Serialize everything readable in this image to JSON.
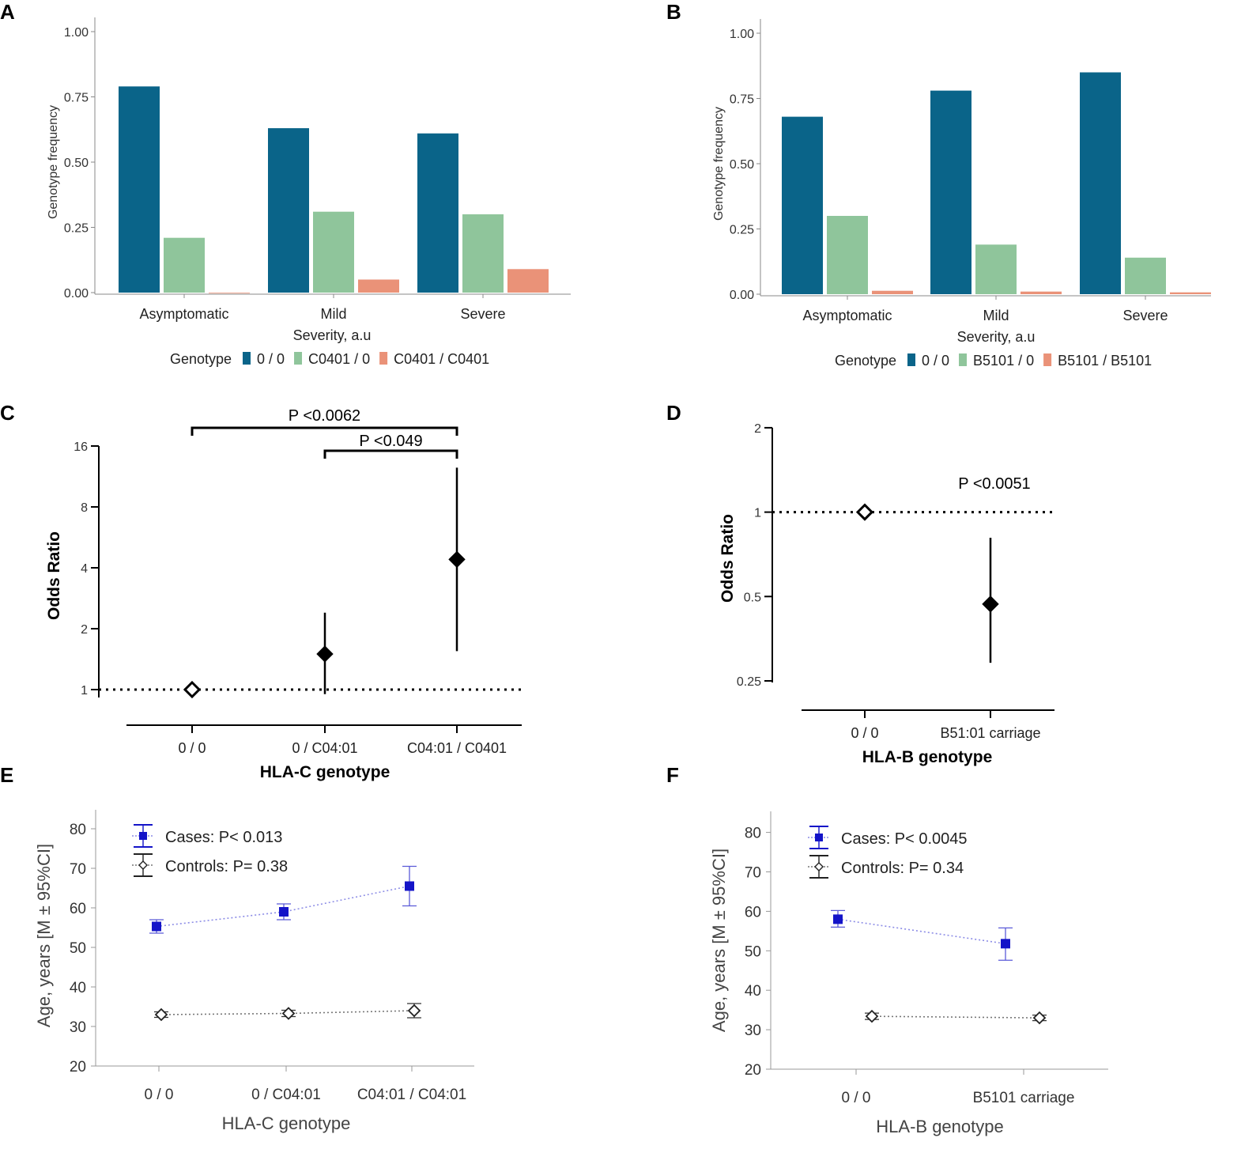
{
  "colors": {
    "g00": "#0a6489",
    "het": "#8fc59b",
    "hom": "#ea9278",
    "cases": "#1414c8",
    "cases_line": "#8c8ce6",
    "controls": "#222222"
  },
  "panel_labels": [
    "A",
    "B",
    "C",
    "D",
    "E",
    "F"
  ],
  "chart_data": [
    {
      "id": "A",
      "type": "bar",
      "categories": [
        "Asymptomatic",
        "Mild",
        "Severe"
      ],
      "series": [
        {
          "name": "0 / 0",
          "color_key": "g00",
          "values": [
            0.79,
            0.63,
            0.61
          ]
        },
        {
          "name": "C0401 / 0",
          "color_key": "het",
          "values": [
            0.21,
            0.31,
            0.3
          ]
        },
        {
          "name": "C0401 / C0401",
          "color_key": "hom",
          "values": [
            0.0,
            0.05,
            0.09
          ]
        }
      ],
      "yticks": [
        0.0,
        0.25,
        0.5,
        0.75,
        1.0
      ],
      "ytick_labels": [
        "0.00",
        "0.25",
        "0.50",
        "0.75",
        "1.00"
      ],
      "ylim": [
        0,
        1.0
      ],
      "xlabel": "Severity, a.u",
      "ylabel": "Genotype frequency",
      "legend_title": "Genotype",
      "legend_position": "bottom"
    },
    {
      "id": "B",
      "type": "bar",
      "categories": [
        "Asymptomatic",
        "Mild",
        "Severe"
      ],
      "series": [
        {
          "name": "0 / 0",
          "color_key": "g00",
          "values": [
            0.68,
            0.78,
            0.85
          ]
        },
        {
          "name": "B5101 / 0",
          "color_key": "het",
          "values": [
            0.3,
            0.19,
            0.14
          ]
        },
        {
          "name": "B5101 / B5101",
          "color_key": "hom",
          "values": [
            0.013,
            0.01,
            0.007
          ]
        }
      ],
      "yticks": [
        0.0,
        0.25,
        0.5,
        0.75,
        1.0
      ],
      "ytick_labels": [
        "0.00",
        "0.25",
        "0.50",
        "0.75",
        "1.00"
      ],
      "ylim": [
        0,
        1.0
      ],
      "xlabel": "Severity, a.u",
      "ylabel": "Genotype frequency",
      "legend_title": "Genotype",
      "legend_position": "bottom"
    },
    {
      "id": "C",
      "type": "scatter",
      "scale": "log2",
      "categories": [
        "0 / 0",
        "0 / C04:01",
        "C04:01 / C0401"
      ],
      "points": [
        {
          "or": 1.0,
          "lo": 1.0,
          "hi": 1.0,
          "reference": true
        },
        {
          "or": 1.5,
          "lo": 0.95,
          "hi": 2.4,
          "reference": false
        },
        {
          "or": 4.4,
          "lo": 1.55,
          "hi": 12.5,
          "reference": false
        }
      ],
      "yticks": [
        1,
        2,
        4,
        8,
        16
      ],
      "ytick_labels": [
        "1",
        "2",
        "4",
        "8",
        "16"
      ],
      "reference_line": 1,
      "xlabel": "HLA-C genotype",
      "ylabel": "Odds Ratio",
      "annotations": [
        {
          "text": "P <0.0062",
          "from": 0,
          "to": 2
        },
        {
          "text": "P <0.049",
          "from": 1,
          "to": 2
        }
      ]
    },
    {
      "id": "D",
      "type": "scatter",
      "scale": "log2",
      "categories": [
        "0 / 0",
        "B51:01 carriage"
      ],
      "points": [
        {
          "or": 1.0,
          "lo": 1.0,
          "hi": 1.0,
          "reference": true
        },
        {
          "or": 0.47,
          "lo": 0.29,
          "hi": 0.81,
          "reference": false
        }
      ],
      "yticks": [
        0.25,
        0.5,
        1,
        2
      ],
      "ytick_labels": [
        "0.25",
        "0.5",
        "1",
        "2"
      ],
      "reference_line": 1,
      "xlabel": "HLA-B genotype",
      "ylabel": "Odds Ratio",
      "annotations": [
        {
          "text": "P <0.0051"
        }
      ]
    },
    {
      "id": "E",
      "type": "line",
      "categories": [
        "0 / 0",
        "0 / C04:01",
        "C04:01 / C04:01"
      ],
      "series": [
        {
          "name": "Cases: P< 0.013",
          "color_key": "cases",
          "marker": "square",
          "values": [
            55.3,
            59.0,
            65.5
          ],
          "lo": [
            53.6,
            57.0,
            60.5
          ],
          "hi": [
            57.0,
            61.0,
            70.5
          ]
        },
        {
          "name": "Controls: P= 0.38",
          "color_key": "controls",
          "marker": "diamond-open",
          "values": [
            33.0,
            33.3,
            34.0
          ],
          "lo": [
            32.3,
            32.5,
            32.2
          ],
          "hi": [
            33.7,
            34.1,
            35.8
          ]
        }
      ],
      "yticks": [
        20,
        30,
        40,
        50,
        60,
        70,
        80
      ],
      "ytick_labels": [
        "20",
        "30",
        "40",
        "50",
        "60",
        "70",
        "80"
      ],
      "ylim": [
        20,
        85
      ],
      "xlabel": "HLA-C genotype",
      "ylabel": "Age, years [M ± 95%CI]",
      "legend_position": "top-left"
    },
    {
      "id": "F",
      "type": "line",
      "categories": [
        "0 / 0",
        "B5101 carriage"
      ],
      "series": [
        {
          "name": "Cases: P< 0.0045",
          "color_key": "cases",
          "marker": "square",
          "values": [
            58.0,
            51.8
          ],
          "lo": [
            56.0,
            47.6
          ],
          "hi": [
            60.2,
            55.8
          ]
        },
        {
          "name": "Controls: P= 0.34",
          "color_key": "controls",
          "marker": "diamond-open",
          "values": [
            33.4,
            33.0
          ],
          "lo": [
            32.6,
            32.3
          ],
          "hi": [
            34.2,
            33.7
          ]
        }
      ],
      "yticks": [
        20,
        30,
        40,
        50,
        60,
        70,
        80
      ],
      "ytick_labels": [
        "20",
        "30",
        "40",
        "50",
        "60",
        "70",
        "80"
      ],
      "ylim": [
        20,
        85
      ],
      "xlabel": "HLA-B genotype",
      "ylabel": "Age, years [M ± 95%CI]",
      "legend_position": "top-left"
    }
  ]
}
